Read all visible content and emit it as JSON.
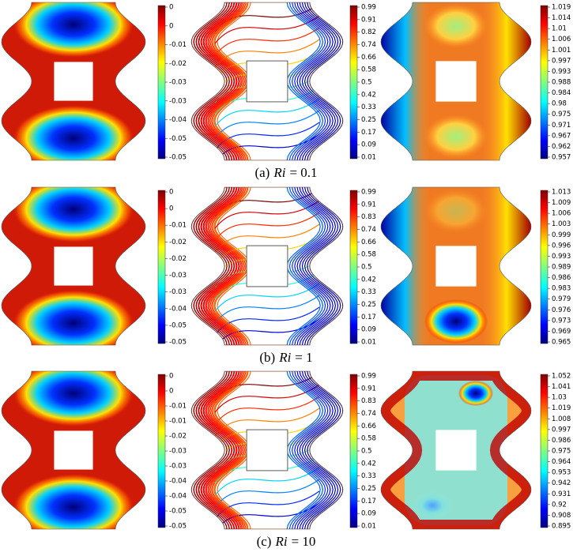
{
  "rows": [
    {
      "caption": {
        "label": "(a)",
        "symbol": "Ri",
        "eq": "= 0.1"
      },
      "panels": [
        {
          "colorbar": [
            "0",
            "0",
            "-0.01",
            "-0.02",
            "-0.03",
            "-0.03",
            "-0.04",
            "-0.05",
            "-0.05"
          ]
        },
        {
          "colorbar": [
            "0.99",
            "0.91",
            "0.82",
            "0.74",
            "0.66",
            "0.58",
            "0.5",
            "0.42",
            "0.33",
            "0.25",
            "0.17",
            "0.09",
            "0.01"
          ]
        },
        {
          "colorbar": [
            "1.019",
            "1.014",
            "1.01",
            "1.006",
            "1.001",
            "0.997",
            "0.993",
            "0.988",
            "0.984",
            "0.98",
            "0.975",
            "0.971",
            "0.967",
            "0.962",
            "0.957"
          ]
        }
      ]
    },
    {
      "caption": {
        "label": "(b)",
        "symbol": "Ri",
        "eq": "= 1"
      },
      "panels": [
        {
          "colorbar": [
            "0",
            "0",
            "-0.01",
            "-0.02",
            "-0.02",
            "-0.03",
            "-0.03",
            "-0.04",
            "-0.05",
            "-0.05"
          ]
        },
        {
          "colorbar": [
            "0.99",
            "0.91",
            "0.83",
            "0.74",
            "0.66",
            "0.58",
            "0.5",
            "0.42",
            "0.33",
            "0.25",
            "0.17",
            "0.09",
            "0.01"
          ]
        },
        {
          "colorbar": [
            "1.013",
            "1.009",
            "1.006",
            "1.003",
            "0.999",
            "0.996",
            "0.993",
            "0.989",
            "0.986",
            "0.983",
            "0.979",
            "0.976",
            "0.973",
            "0.969",
            "0.965"
          ]
        }
      ]
    },
    {
      "caption": {
        "label": "(c)",
        "symbol": "Ri",
        "eq": "= 10"
      },
      "panels": [
        {
          "colorbar": [
            "0",
            "0",
            "-0.01",
            "-0.01",
            "-0.02",
            "-0.03",
            "-0.03",
            "-0.04",
            "-0.04",
            "-0.05",
            "-0.05"
          ]
        },
        {
          "colorbar": [
            "0.99",
            "0.91",
            "0.83",
            "0.74",
            "0.66",
            "0.58",
            "0.5",
            "0.42",
            "0.33",
            "0.25",
            "0.17",
            "0.09",
            "0.01"
          ]
        },
        {
          "colorbar": [
            "1.052",
            "1.041",
            "1.03",
            "1.019",
            "1.008",
            "0.997",
            "0.986",
            "0.975",
            "0.964",
            "0.953",
            "0.942",
            "0.931",
            "0.92",
            "0.908",
            "0.895"
          ]
        }
      ]
    }
  ]
}
